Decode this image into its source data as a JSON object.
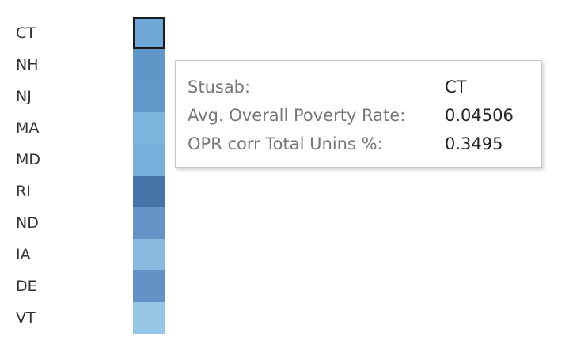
{
  "rows": [
    {
      "label": "CT",
      "color": "#6fa8d6"
    },
    {
      "label": "NH",
      "color": "#6196c9"
    },
    {
      "label": "NJ",
      "color": "#6497c9"
    },
    {
      "label": "MA",
      "color": "#7eb3db"
    },
    {
      "label": "MD",
      "color": "#79aed9"
    },
    {
      "label": "RI",
      "color": "#4574a8"
    },
    {
      "label": "ND",
      "color": "#6595c8"
    },
    {
      "label": "IA",
      "color": "#86bade"
    },
    {
      "label": "DE",
      "color": "#6193c6"
    },
    {
      "label": "VT",
      "color": "#95c6e6"
    }
  ],
  "tooltip": {
    "stusab_label": "Stusab:",
    "stusab_value": "CT",
    "poverty_label": "Avg. Overall Poverty Rate:",
    "poverty_value": "0.04506",
    "corr_label": "OPR corr Total Unins %:",
    "corr_value": "0.3495"
  }
}
